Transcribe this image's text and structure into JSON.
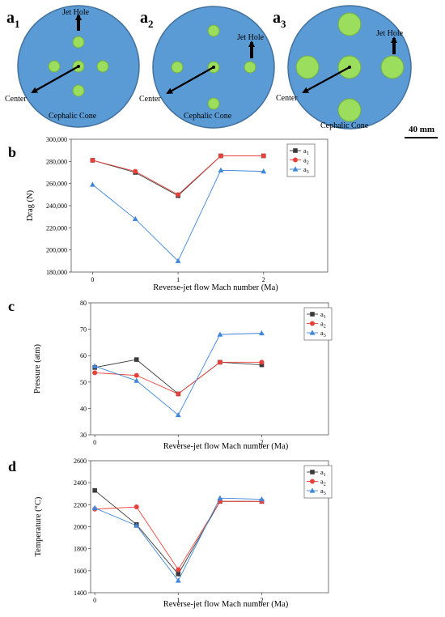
{
  "diagrams": [
    {
      "label_letter": "a",
      "label_sub": "1",
      "jet_hole_label": "Jet Hole",
      "center_label": "Center",
      "cone_label": "Cephalic Cone",
      "holes": "five small holes: center, up, down, left, right"
    },
    {
      "label_letter": "a",
      "label_sub": "2",
      "jet_hole_label": "Jet Hole",
      "center_label": "Center",
      "cone_label": "Cephalic Cone",
      "holes": "five small holes: center, up, down, left, right at larger spacing"
    },
    {
      "label_letter": "a",
      "label_sub": "3",
      "jet_hole_label": "Jet Hole",
      "center_label": "Center",
      "cone_label": "Cephalic Cone",
      "holes": "five large holes: center, up, down, left, right"
    }
  ],
  "scale_bar_label": "40 mm",
  "colors": {
    "disk_fill": "#5b9bd5",
    "disk_stroke": "#41719c",
    "hole_fill": "#9bdd5c",
    "hole_stroke": "#70ad47",
    "series_a1": "#3a3a3a",
    "series_a2": "#e8413a",
    "series_a3": "#3f86d9"
  },
  "chart_data": [
    {
      "panel_label": "b",
      "type": "line",
      "x": [
        0,
        0.5,
        1,
        1.5,
        2
      ],
      "xticks": [
        "0",
        "1",
        "2"
      ],
      "xlim": [
        -0.25,
        2.75
      ],
      "ylim": [
        180000,
        300000
      ],
      "yticks": [
        "180,000",
        "200,000",
        "220,000",
        "240,000",
        "260,000",
        "280,000",
        "300,000"
      ],
      "ytick_values": [
        180000,
        200000,
        220000,
        240000,
        260000,
        280000,
        300000
      ],
      "xlabel": "Reverse-jet flow Mach number (Ma)",
      "ylabel": "Drag (N)",
      "legend_position": "top-right",
      "series": [
        {
          "name": "a",
          "sub": "1",
          "marker": "square",
          "values": [
            281000,
            270000,
            249000,
            285000,
            285000
          ]
        },
        {
          "name": "a",
          "sub": "2",
          "marker": "circle",
          "values": [
            281000,
            271000,
            250000,
            285000,
            285000
          ]
        },
        {
          "name": "a",
          "sub": "3",
          "marker": "triangle",
          "values": [
            259000,
            228000,
            190000,
            272000,
            271000
          ]
        }
      ]
    },
    {
      "panel_label": "c",
      "type": "line",
      "x": [
        0,
        0.5,
        1,
        1.5,
        2
      ],
      "xticks": [
        "0",
        "1",
        "2"
      ],
      "xlim": [
        -0.05,
        2.8
      ],
      "ylim": [
        30,
        80
      ],
      "yticks": [
        "30",
        "40",
        "50",
        "60",
        "70",
        "80"
      ],
      "ytick_values": [
        30,
        40,
        50,
        60,
        70,
        80
      ],
      "xlabel": "Reverse-jet flow Mach number (Ma)",
      "ylabel": "Pressure (atm)",
      "legend_position": "top-right",
      "series": [
        {
          "name": "a",
          "sub": "1",
          "marker": "square",
          "values": [
            55.5,
            58.5,
            45.5,
            57.5,
            56.5
          ]
        },
        {
          "name": "a",
          "sub": "2",
          "marker": "circle",
          "values": [
            53.5,
            52.5,
            45.5,
            57.5,
            57.5
          ]
        },
        {
          "name": "a",
          "sub": "3",
          "marker": "triangle",
          "values": [
            56.0,
            50.5,
            37.5,
            68.0,
            68.5
          ]
        }
      ]
    },
    {
      "panel_label": "d",
      "type": "line",
      "x": [
        0,
        0.5,
        1,
        1.5,
        2
      ],
      "xticks": [
        "0",
        "1",
        "2"
      ],
      "xlim": [
        -0.05,
        2.8
      ],
      "ylim": [
        1400,
        2600
      ],
      "yticks": [
        "1400",
        "1600",
        "1800",
        "2000",
        "2200",
        "2400",
        "2600"
      ],
      "ytick_values": [
        1400,
        1600,
        1800,
        2000,
        2200,
        2400,
        2600
      ],
      "xlabel": "Reverse-jet flow Mach number (Ma)",
      "ylabel": "Temperature (°C)",
      "legend_position": "top-right",
      "series": [
        {
          "name": "a",
          "sub": "1",
          "marker": "square",
          "values": [
            2330,
            2020,
            1570,
            2230,
            2230
          ]
        },
        {
          "name": "a",
          "sub": "2",
          "marker": "circle",
          "values": [
            2160,
            2180,
            1610,
            2230,
            2230
          ]
        },
        {
          "name": "a",
          "sub": "3",
          "marker": "triangle",
          "values": [
            2170,
            2010,
            1510,
            2260,
            2250
          ]
        }
      ]
    }
  ]
}
